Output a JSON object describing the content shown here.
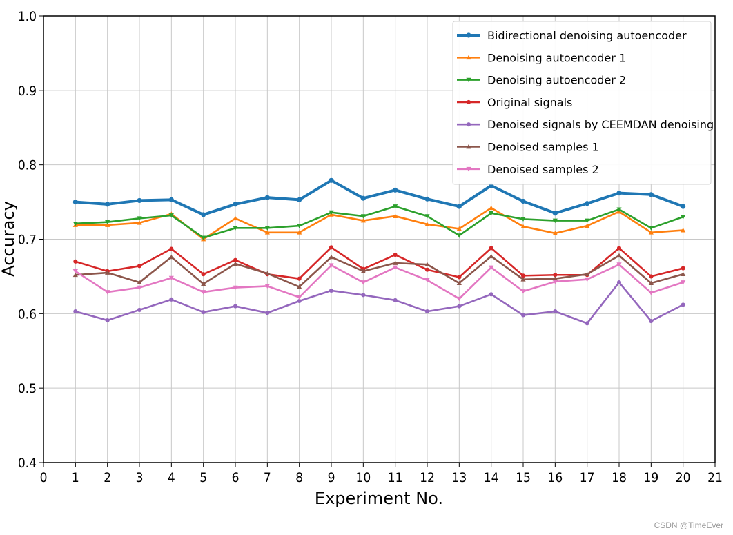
{
  "chart_data": {
    "type": "line",
    "title": "",
    "xlabel": "Experiment No.",
    "ylabel": "Accuracy",
    "xlim": [
      0,
      21
    ],
    "ylim": [
      0.4,
      1.0
    ],
    "xticks": [
      "0",
      "1",
      "2",
      "3",
      "4",
      "5",
      "6",
      "7",
      "8",
      "9",
      "10",
      "11",
      "12",
      "13",
      "14",
      "15",
      "16",
      "17",
      "18",
      "19",
      "20",
      "21"
    ],
    "yticks": [
      "0.4",
      "0.5",
      "0.6",
      "0.7",
      "0.8",
      "0.9",
      "1.0"
    ],
    "grid": true,
    "legend_position": "top-right",
    "x": [
      1,
      2,
      3,
      4,
      5,
      6,
      7,
      8,
      9,
      10,
      11,
      12,
      13,
      14,
      15,
      16,
      17,
      18,
      19,
      20
    ],
    "series": [
      {
        "name": "Bidirectional denoising autoencoder",
        "color": "#1f77b4",
        "marker": "circle",
        "values": [
          0.75,
          0.747,
          0.752,
          0.753,
          0.733,
          0.747,
          0.756,
          0.753,
          0.779,
          0.755,
          0.766,
          0.754,
          0.744,
          0.772,
          0.751,
          0.735,
          0.748,
          0.762,
          0.76,
          0.744
        ]
      },
      {
        "name": "Denoising autoencoder 1",
        "color": "#ff7f0e",
        "marker": "triangle-up",
        "values": [
          0.719,
          0.719,
          0.722,
          0.734,
          0.7,
          0.728,
          0.709,
          0.709,
          0.733,
          0.725,
          0.731,
          0.72,
          0.714,
          0.742,
          0.717,
          0.708,
          0.718,
          0.737,
          0.709,
          0.712
        ]
      },
      {
        "name": "Denoising autoencoder 2",
        "color": "#2ca02c",
        "marker": "triangle-down",
        "values": [
          0.721,
          0.723,
          0.728,
          0.732,
          0.702,
          0.715,
          0.715,
          0.718,
          0.736,
          0.731,
          0.744,
          0.731,
          0.705,
          0.735,
          0.727,
          0.725,
          0.725,
          0.74,
          0.715,
          0.73
        ]
      },
      {
        "name": "Original signals",
        "color": "#d62728",
        "marker": "circle",
        "values": [
          0.67,
          0.657,
          0.664,
          0.687,
          0.653,
          0.672,
          0.653,
          0.647,
          0.689,
          0.66,
          0.679,
          0.659,
          0.649,
          0.688,
          0.651,
          0.652,
          0.652,
          0.688,
          0.65,
          0.661
        ]
      },
      {
        "name": "Denoised signals by CEEMDAN denoising",
        "color": "#9467bd",
        "marker": "circle",
        "values": [
          0.603,
          0.591,
          0.605,
          0.619,
          0.602,
          0.61,
          0.601,
          0.617,
          0.631,
          0.625,
          0.618,
          0.603,
          0.61,
          0.626,
          0.598,
          0.603,
          0.587,
          0.642,
          0.59,
          0.612
        ]
      },
      {
        "name": "Denoised samples 1",
        "color": "#8c564b",
        "marker": "triangle-up",
        "values": [
          0.652,
          0.655,
          0.642,
          0.676,
          0.64,
          0.667,
          0.654,
          0.636,
          0.676,
          0.657,
          0.668,
          0.666,
          0.641,
          0.677,
          0.646,
          0.647,
          0.653,
          0.678,
          0.641,
          0.653
        ]
      },
      {
        "name": "Denoised samples 2",
        "color": "#e377c2",
        "marker": "triangle-down",
        "values": [
          0.657,
          0.629,
          0.635,
          0.648,
          0.629,
          0.635,
          0.637,
          0.622,
          0.665,
          0.642,
          0.662,
          0.645,
          0.62,
          0.662,
          0.63,
          0.643,
          0.646,
          0.666,
          0.628,
          0.642
        ]
      }
    ]
  },
  "watermark": "CSDN @TimeEver"
}
